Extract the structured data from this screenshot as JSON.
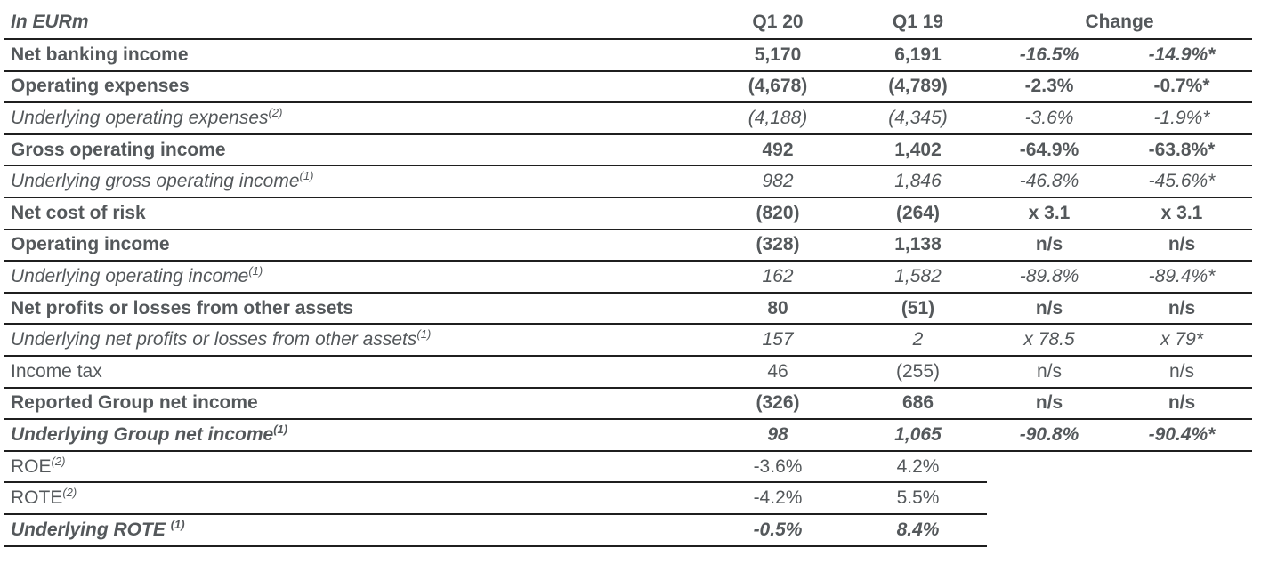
{
  "colors": {
    "text": "#54585b",
    "line": "#1f1f1f",
    "background": "#ffffff"
  },
  "table": {
    "unit_label": "In EURm",
    "columns": {
      "q120": "Q1 20",
      "q119": "Q1 19",
      "change": "Change"
    },
    "rows": [
      {
        "label": "Net banking income",
        "sup": "",
        "q120": "5,170",
        "q119": "6,191",
        "chg1": "-16.5%",
        "chg2": "-14.9%*",
        "bold": true,
        "italic": false,
        "chg_italic": true,
        "short_line": false
      },
      {
        "label": "Operating expenses",
        "sup": "",
        "q120": "(4,678)",
        "q119": "(4,789)",
        "chg1": "-2.3%",
        "chg2": "-0.7%*",
        "bold": true,
        "italic": false,
        "chg_italic": false,
        "short_line": false
      },
      {
        "label": "Underlying operating expenses",
        "sup": "(2)",
        "q120": "(4,188)",
        "q119": "(4,345)",
        "chg1": "-3.6%",
        "chg2": "-1.9%*",
        "bold": false,
        "italic": true,
        "chg_italic": false,
        "short_line": false
      },
      {
        "label": "Gross operating income",
        "sup": "",
        "q120": "492",
        "q119": "1,402",
        "chg1": "-64.9%",
        "chg2": "-63.8%*",
        "bold": true,
        "italic": false,
        "chg_italic": false,
        "short_line": false
      },
      {
        "label": "Underlying gross operating income",
        "sup": "(1)",
        "q120": "982",
        "q119": "1,846",
        "chg1": "-46.8%",
        "chg2": "-45.6%*",
        "bold": false,
        "italic": true,
        "chg_italic": false,
        "short_line": false
      },
      {
        "label": "Net cost of risk",
        "sup": "",
        "q120": "(820)",
        "q119": "(264)",
        "chg1": "x 3.1",
        "chg2": "x 3.1",
        "bold": true,
        "italic": false,
        "chg_italic": false,
        "short_line": false
      },
      {
        "label": "Operating income",
        "sup": "",
        "q120": "(328)",
        "q119": "1,138",
        "chg1": "n/s",
        "chg2": "n/s",
        "bold": true,
        "italic": false,
        "chg_italic": false,
        "short_line": false
      },
      {
        "label": "Underlying operating income",
        "sup": "(1)",
        "q120": "162",
        "q119": "1,582",
        "chg1": "-89.8%",
        "chg2": "-89.4%*",
        "bold": false,
        "italic": true,
        "chg_italic": false,
        "short_line": false
      },
      {
        "label": "Net profits or losses from other assets",
        "sup": "",
        "q120": "80",
        "q119": "(51)",
        "chg1": "n/s",
        "chg2": "n/s",
        "bold": true,
        "italic": false,
        "chg_italic": false,
        "short_line": false
      },
      {
        "label": "Underlying net profits or losses from other assets",
        "sup": "(1)",
        "q120": "157",
        "q119": "2",
        "chg1": "x 78.5",
        "chg2": "x 79*",
        "bold": false,
        "italic": true,
        "chg_italic": false,
        "short_line": false
      },
      {
        "label": "Income tax",
        "sup": "",
        "q120": "46",
        "q119": "(255)",
        "chg1": "n/s",
        "chg2": "n/s",
        "bold": false,
        "italic": false,
        "chg_italic": false,
        "short_line": false
      },
      {
        "label": "Reported Group net income",
        "sup": "",
        "q120": "(326)",
        "q119": "686",
        "chg1": "n/s",
        "chg2": "n/s",
        "bold": true,
        "italic": false,
        "chg_italic": false,
        "short_line": false
      },
      {
        "label": "Underlying Group net income",
        "sup": "(1)",
        "q120": "98",
        "q119": "1,065",
        "chg1": "-90.8%",
        "chg2": "-90.4%*",
        "bold": true,
        "italic": true,
        "chg_italic": false,
        "short_line": false
      },
      {
        "label": "ROE",
        "sup": "(2)",
        "q120": "-3.6%",
        "q119": "4.2%",
        "chg1": "",
        "chg2": "",
        "bold": false,
        "italic": false,
        "chg_italic": false,
        "short_line": true
      },
      {
        "label": "ROTE",
        "sup": "(2)",
        "q120": "-4.2%",
        "q119": "5.5%",
        "chg1": "",
        "chg2": "",
        "bold": false,
        "italic": false,
        "chg_italic": false,
        "short_line": true
      },
      {
        "label": "Underlying ROTE ",
        "sup": "(1)",
        "q120": "-0.5%",
        "q119": "8.4%",
        "chg1": "",
        "chg2": "",
        "bold": true,
        "italic": true,
        "chg_italic": false,
        "short_line": true
      }
    ]
  }
}
